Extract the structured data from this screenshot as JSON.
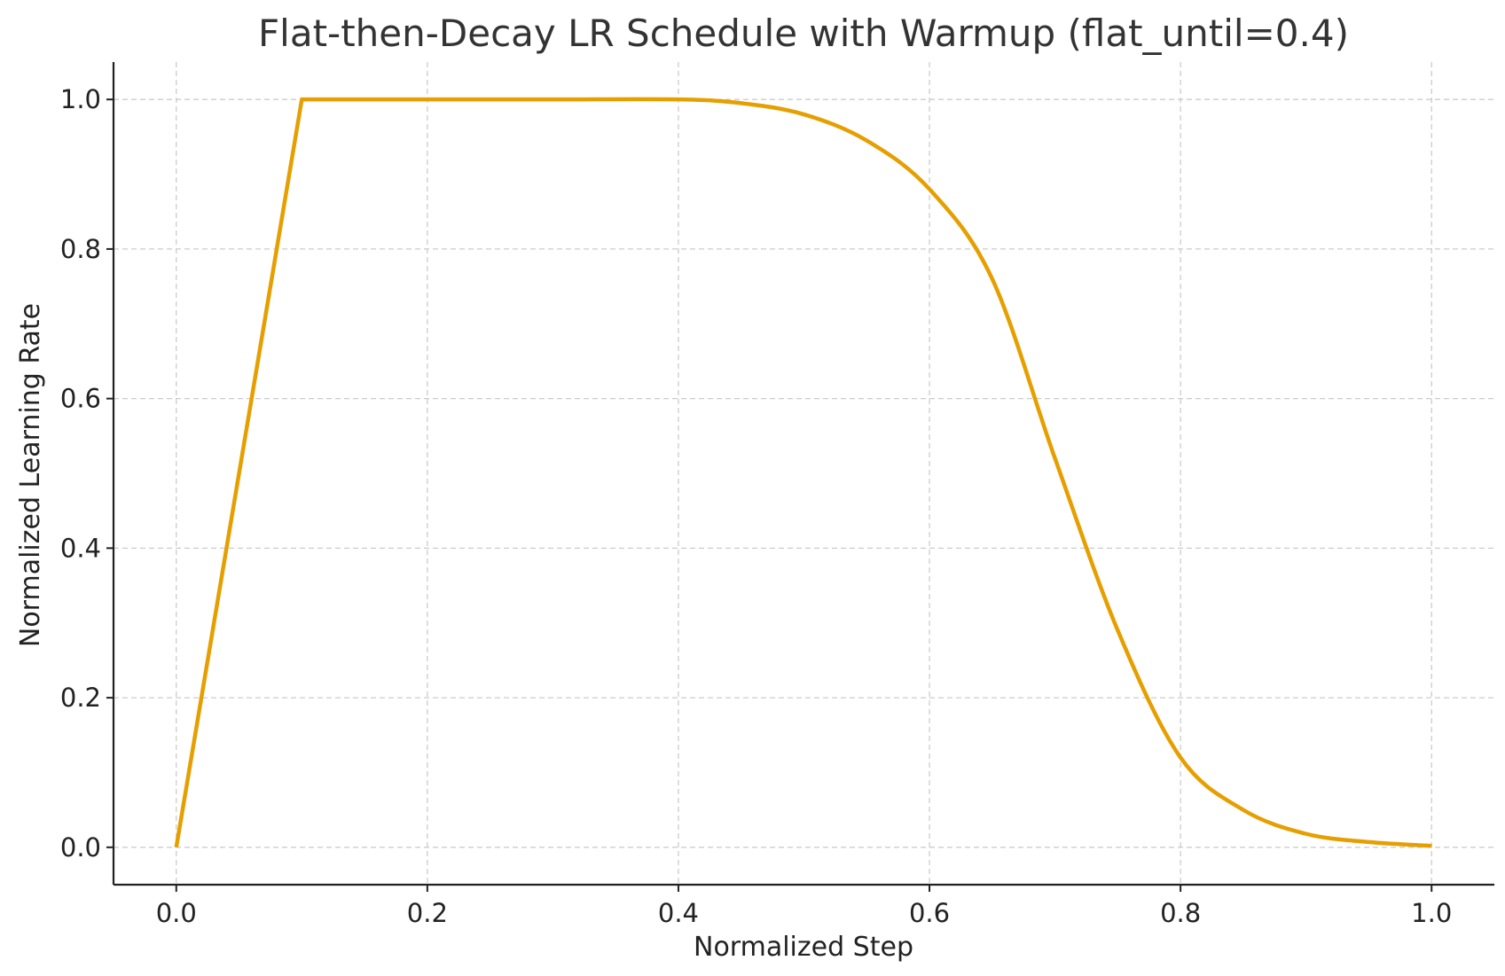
{
  "chart_data": {
    "type": "line",
    "title": "Flat-then-Decay LR Schedule with Warmup (flat_until=0.4)",
    "xlabel": "Normalized Step",
    "ylabel": "Normalized Learning Rate",
    "xlim": [
      -0.05,
      1.05
    ],
    "ylim": [
      -0.05,
      1.05
    ],
    "x_ticks": [
      0.0,
      0.2,
      0.4,
      0.6,
      0.8,
      1.0
    ],
    "x_tick_labels": [
      "0.0",
      "0.2",
      "0.4",
      "0.6",
      "0.8",
      "1.0"
    ],
    "y_ticks": [
      0.0,
      0.2,
      0.4,
      0.6,
      0.8,
      1.0
    ],
    "y_tick_labels": [
      "0.0",
      "0.2",
      "0.4",
      "0.6",
      "0.8",
      "1.0"
    ],
    "grid": true,
    "series": [
      {
        "color": "#E69F00",
        "x": [
          0.0,
          0.1,
          0.2,
          0.3,
          0.4,
          0.45,
          0.5,
          0.55,
          0.6,
          0.65,
          0.7,
          0.75,
          0.8,
          0.85,
          0.9,
          0.95,
          1.0
        ],
        "y": [
          0.0,
          1.0,
          1.0,
          1.0,
          1.0,
          0.995,
          0.98,
          0.945,
          0.88,
          0.76,
          0.52,
          0.29,
          0.12,
          0.05,
          0.018,
          0.007,
          0.002
        ]
      }
    ]
  }
}
